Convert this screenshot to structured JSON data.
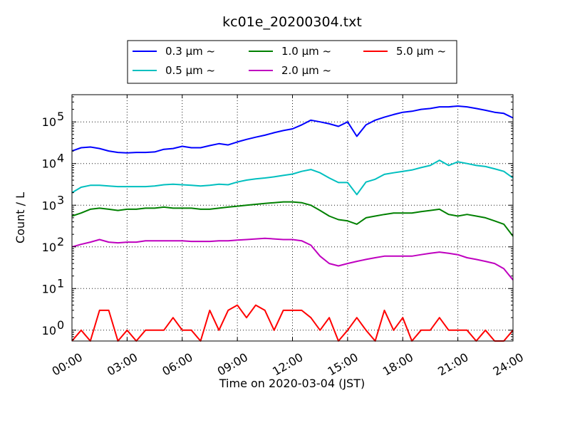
{
  "chart_data": {
    "type": "line",
    "title": "kc01e_20200304.txt",
    "xlabel": "Time on 2020-03-04 (JST)",
    "ylabel": "Count / L",
    "yscale": "log",
    "xlim": [
      "00:00",
      "24:00"
    ],
    "ylim": [
      0.55,
      450000
    ],
    "grid": true,
    "legend_position": "top-center",
    "x_ticks": [
      "00:00",
      "03:00",
      "06:00",
      "09:00",
      "12:00",
      "15:00",
      "18:00",
      "21:00",
      "24:00"
    ],
    "y_ticks": [
      {
        "value": 1,
        "base": "10",
        "exp": "0"
      },
      {
        "value": 10,
        "base": "10",
        "exp": "1"
      },
      {
        "value": 100,
        "base": "10",
        "exp": "2"
      },
      {
        "value": 1000,
        "base": "10",
        "exp": "3"
      },
      {
        "value": 10000,
        "base": "10",
        "exp": "4"
      },
      {
        "value": 100000,
        "base": "10",
        "exp": "5"
      }
    ],
    "x": [
      "00:00",
      "00:30",
      "01:00",
      "01:30",
      "02:00",
      "02:30",
      "03:00",
      "03:30",
      "04:00",
      "04:30",
      "05:00",
      "05:30",
      "06:00",
      "06:30",
      "07:00",
      "07:30",
      "08:00",
      "08:30",
      "09:00",
      "09:30",
      "10:00",
      "10:30",
      "11:00",
      "11:30",
      "12:00",
      "12:30",
      "13:00",
      "13:30",
      "14:00",
      "14:30",
      "15:00",
      "15:30",
      "16:00",
      "16:30",
      "17:00",
      "17:30",
      "18:00",
      "18:30",
      "19:00",
      "19:30",
      "20:00",
      "20:30",
      "21:00",
      "21:30",
      "22:00",
      "22:30",
      "23:00",
      "23:30",
      "24:00"
    ],
    "series": [
      {
        "name": "0.3 μm ~",
        "color": "#0000ff",
        "values": [
          20000,
          24000,
          25000,
          23000,
          20000,
          18500,
          18000,
          18500,
          18500,
          19000,
          22000,
          23000,
          26000,
          24000,
          24000,
          27000,
          30000,
          28000,
          33000,
          38000,
          43000,
          48000,
          55000,
          62000,
          68000,
          85000,
          110000,
          100000,
          90000,
          78000,
          100000,
          45000,
          85000,
          110000,
          130000,
          150000,
          170000,
          180000,
          200000,
          210000,
          230000,
          230000,
          240000,
          230000,
          210000,
          190000,
          170000,
          160000,
          125000
        ]
      },
      {
        "name": "0.5 μm ~",
        "color": "#00bfbf",
        "values": [
          2000,
          2700,
          3000,
          3000,
          2900,
          2800,
          2800,
          2800,
          2800,
          2900,
          3100,
          3200,
          3100,
          3000,
          2900,
          3000,
          3200,
          3100,
          3600,
          4000,
          4300,
          4500,
          4800,
          5200,
          5600,
          6500,
          7200,
          6000,
          4500,
          3500,
          3500,
          1800,
          3600,
          4200,
          5500,
          6000,
          6500,
          7000,
          8000,
          9000,
          12000,
          9000,
          11000,
          10000,
          9000,
          8500,
          7500,
          6500,
          4500
        ]
      },
      {
        "name": "1.0 μm ~",
        "color": "#008000",
        "values": [
          550,
          650,
          800,
          850,
          800,
          750,
          800,
          800,
          850,
          850,
          900,
          850,
          850,
          850,
          800,
          800,
          850,
          900,
          950,
          1000,
          1050,
          1100,
          1150,
          1200,
          1200,
          1150,
          1000,
          750,
          550,
          450,
          420,
          350,
          500,
          550,
          600,
          650,
          650,
          650,
          700,
          750,
          800,
          600,
          550,
          600,
          550,
          500,
          420,
          350,
          180
        ]
      },
      {
        "name": "2.0 μm ~",
        "color": "#bf00bf",
        "values": [
          100,
          115,
          130,
          150,
          130,
          125,
          130,
          130,
          140,
          140,
          140,
          140,
          140,
          135,
          135,
          135,
          140,
          140,
          145,
          150,
          155,
          160,
          155,
          150,
          150,
          140,
          110,
          60,
          40,
          35,
          40,
          45,
          50,
          55,
          60,
          60,
          60,
          60,
          65,
          70,
          75,
          70,
          65,
          55,
          50,
          45,
          40,
          30,
          16
        ]
      },
      {
        "name": "5.0 μm ~",
        "color": "#ff0000",
        "values": [
          0,
          1,
          0,
          3,
          3,
          0,
          1,
          0,
          1,
          1,
          1,
          2,
          1,
          1,
          0,
          3,
          1,
          3,
          4,
          2,
          4,
          3,
          1,
          3,
          3,
          3,
          2,
          1,
          2,
          0,
          1,
          2,
          1,
          0,
          3,
          1,
          2,
          0,
          1,
          1,
          2,
          1,
          1,
          1,
          0,
          1,
          0,
          0,
          1
        ]
      }
    ]
  }
}
